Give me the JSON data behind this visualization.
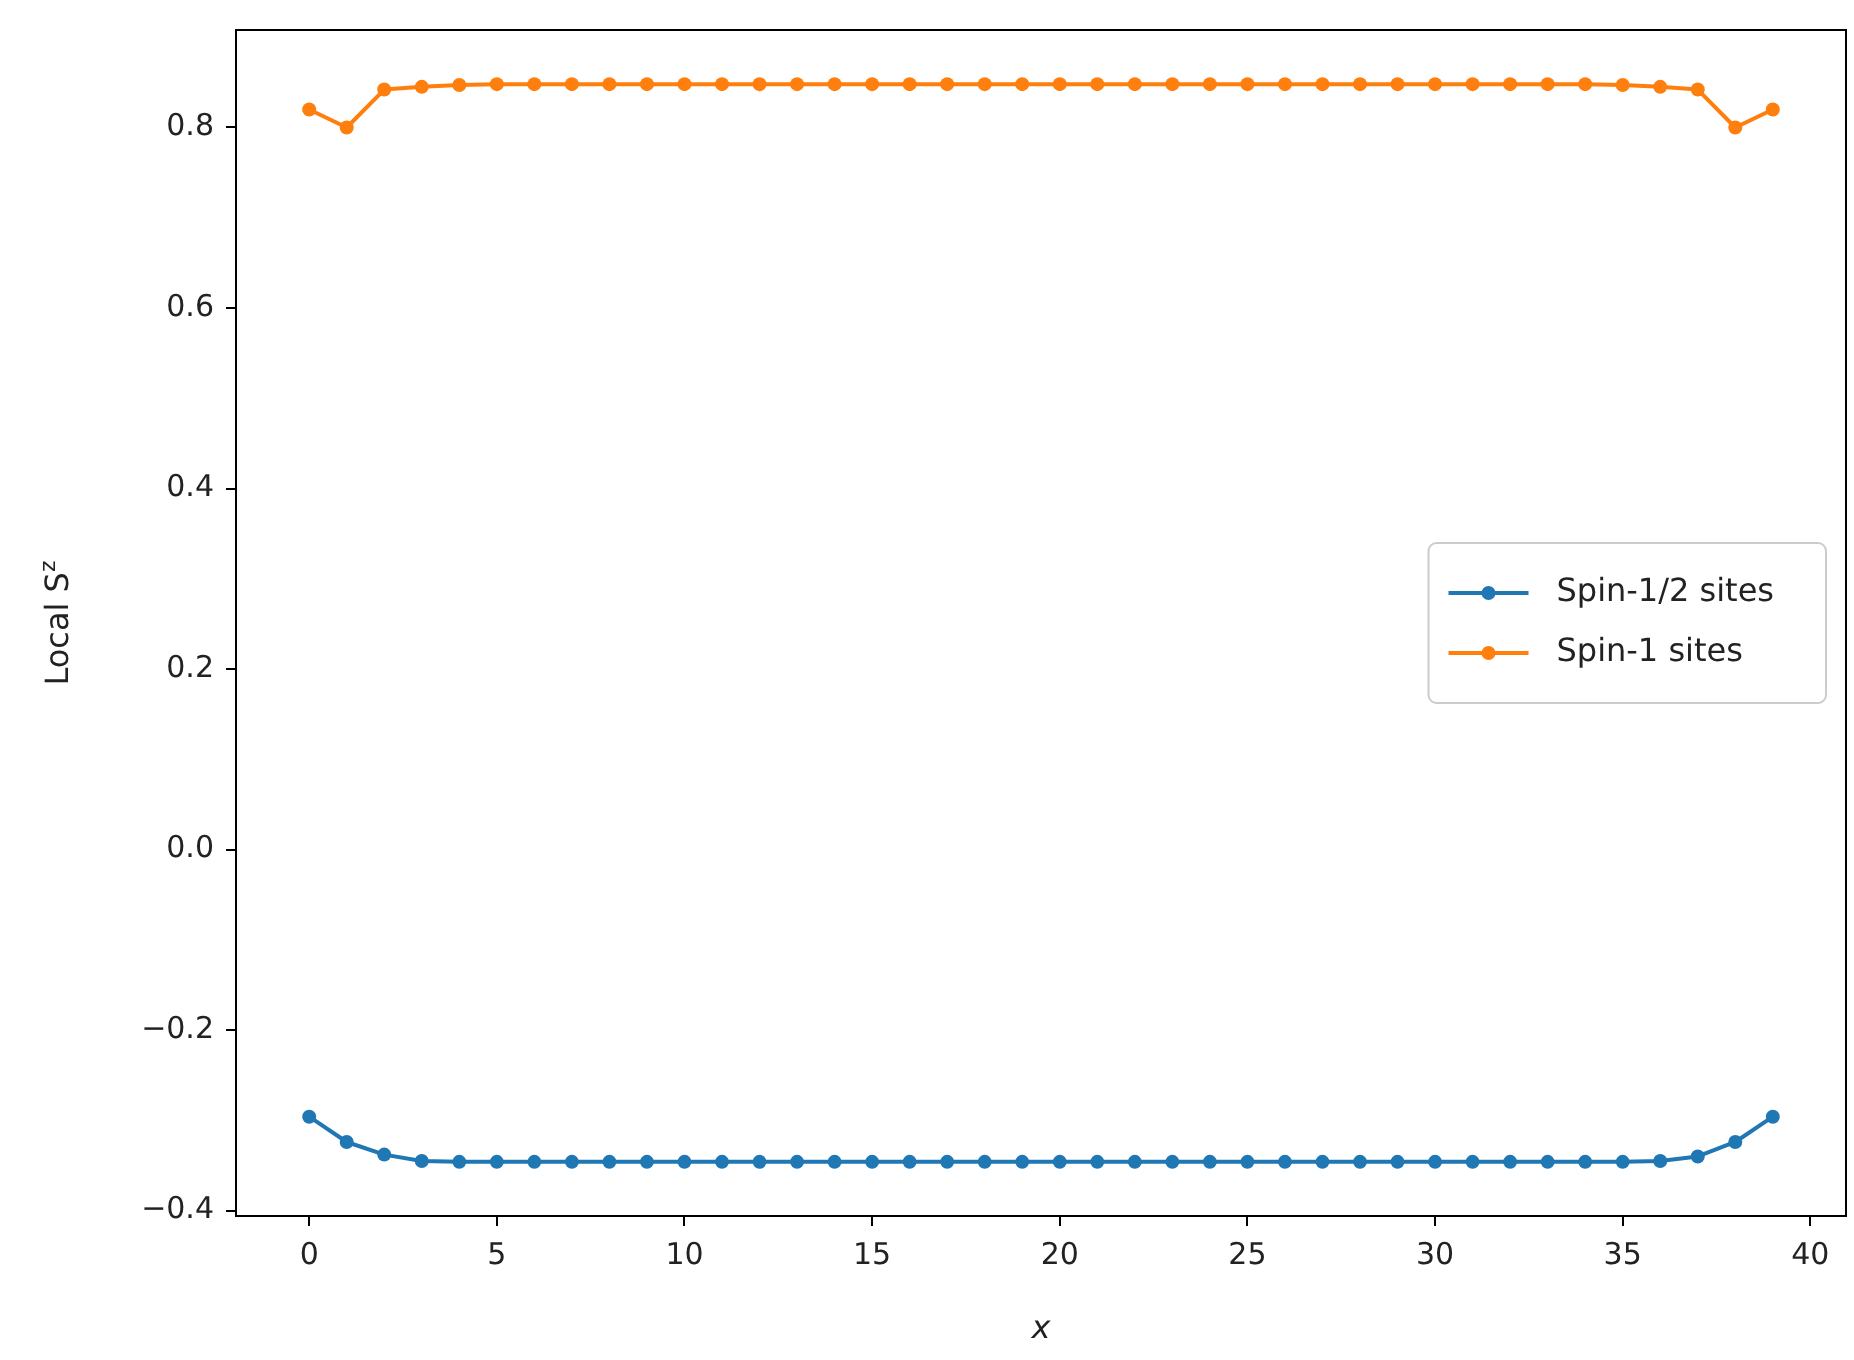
{
  "chart_data": {
    "type": "line",
    "xlabel": "x",
    "ylabel": "Local S$^{z}$",
    "x": [
      0,
      1,
      2,
      3,
      4,
      5,
      6,
      7,
      8,
      9,
      10,
      11,
      12,
      13,
      14,
      15,
      16,
      17,
      18,
      19,
      20,
      21,
      22,
      23,
      24,
      25,
      26,
      27,
      28,
      29,
      30,
      31,
      32,
      33,
      34,
      35,
      36,
      37,
      38,
      39
    ],
    "series": [
      {
        "name": "Spin-1/2 sites",
        "color": "#1f77b4",
        "values": [
          -0.296,
          -0.324,
          -0.338,
          -0.345,
          -0.346,
          -0.346,
          -0.346,
          -0.346,
          -0.346,
          -0.346,
          -0.346,
          -0.346,
          -0.346,
          -0.346,
          -0.346,
          -0.346,
          -0.346,
          -0.346,
          -0.346,
          -0.346,
          -0.346,
          -0.346,
          -0.346,
          -0.346,
          -0.346,
          -0.346,
          -0.346,
          -0.346,
          -0.346,
          -0.346,
          -0.346,
          -0.346,
          -0.346,
          -0.346,
          -0.346,
          -0.346,
          -0.345,
          -0.34,
          -0.324,
          -0.296
        ]
      },
      {
        "name": "Spin-1 sites",
        "color": "#ff7f0e",
        "values": [
          0.82,
          0.8,
          0.842,
          0.845,
          0.847,
          0.848,
          0.848,
          0.848,
          0.848,
          0.848,
          0.848,
          0.848,
          0.848,
          0.848,
          0.848,
          0.848,
          0.848,
          0.848,
          0.848,
          0.848,
          0.848,
          0.848,
          0.848,
          0.848,
          0.848,
          0.848,
          0.848,
          0.848,
          0.848,
          0.848,
          0.848,
          0.848,
          0.848,
          0.848,
          0.848,
          0.847,
          0.845,
          0.842,
          0.8,
          0.82
        ]
      }
    ],
    "xlim": [
      -1.95,
      40.95
    ],
    "xticks": [
      0,
      5,
      10,
      15,
      20,
      25,
      30,
      35,
      40
    ],
    "ylim": [
      -0.406,
      0.908
    ],
    "yticks": [
      {
        "value": -0.4,
        "label": "−0.4"
      },
      {
        "value": -0.2,
        "label": "−0.2"
      },
      {
        "value": 0,
        "label": "0.0"
      },
      {
        "value": 0.2,
        "label": "0.2"
      },
      {
        "value": 0.4,
        "label": "0.4"
      },
      {
        "value": 0.6,
        "label": "0.6"
      },
      {
        "value": 0.8,
        "label": "0.8"
      }
    ],
    "grid": false,
    "legend": "center right",
    "marker": "circle",
    "line_style": "solid"
  }
}
